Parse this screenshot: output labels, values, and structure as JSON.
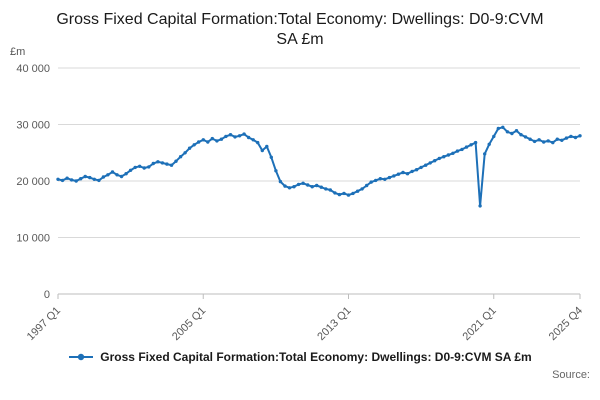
{
  "title": "Gross Fixed Capital Formation:Total Economy: Dwellings: D0-9:CVM SA £m",
  "legend": {
    "label": "Gross Fixed Capital Formation:Total Economy: Dwellings: D0-9:CVM SA £m"
  },
  "footer": {
    "source": "Source:"
  },
  "colors": {
    "line": "#1d70b8",
    "grid": "#d9d9d9",
    "axis": "#bdbdbd",
    "tick_text": "#595959"
  },
  "chart_data": {
    "type": "line",
    "title": "Gross Fixed Capital Formation:Total Economy: Dwellings: D0-9:CVM SA £m",
    "xlabel": "",
    "ylabel": "£m",
    "ylim": [
      0,
      40000
    ],
    "y_tick_values": [
      0,
      10000,
      20000,
      30000,
      40000
    ],
    "y_ticks": [
      "0",
      "10 000",
      "20 000",
      "30 000",
      "40 000"
    ],
    "x_start": "1997 Q1",
    "x_end": "2025 Q4",
    "frequency": "quarterly",
    "x_tick_labels": [
      "1997 Q1",
      "2005 Q1",
      "2013 Q1",
      "2021 Q1",
      "2025 Q4"
    ],
    "x_tick_indices": [
      0,
      32,
      64,
      96,
      115
    ],
    "grid": "horizontal",
    "legend_position": "bottom",
    "series": [
      {
        "name": "Gross Fixed Capital Formation:Total Economy: Dwellings: D0-9:CVM SA £m",
        "color": "#1d70b8",
        "marker": "circle",
        "values": [
          20300,
          20100,
          20500,
          20200,
          20000,
          20400,
          20800,
          20600,
          20300,
          20100,
          20700,
          21100,
          21600,
          21100,
          20800,
          21300,
          21900,
          22400,
          22600,
          22300,
          22500,
          23100,
          23400,
          23200,
          23000,
          22800,
          23500,
          24300,
          25000,
          25800,
          26400,
          26900,
          27300,
          26900,
          27500,
          27100,
          27400,
          27900,
          28200,
          27800,
          28000,
          28300,
          27700,
          27300,
          26800,
          25400,
          26100,
          24200,
          21800,
          19900,
          19100,
          18800,
          19000,
          19400,
          19600,
          19300,
          19000,
          19200,
          18900,
          18600,
          18400,
          17900,
          17600,
          17800,
          17500,
          17800,
          18200,
          18600,
          19200,
          19800,
          20100,
          20400,
          20300,
          20600,
          20900,
          21200,
          21500,
          21300,
          21700,
          22000,
          22400,
          22800,
          23200,
          23600,
          24000,
          24300,
          24600,
          24900,
          25300,
          25600,
          26000,
          26400,
          26800,
          15600,
          24800,
          26500,
          27900,
          29300,
          29500,
          28700,
          28400,
          28900,
          28200,
          27800,
          27400,
          27000,
          27300,
          26900,
          27100,
          26800,
          27400,
          27200,
          27600,
          27900,
          27700,
          28000
        ]
      }
    ]
  }
}
